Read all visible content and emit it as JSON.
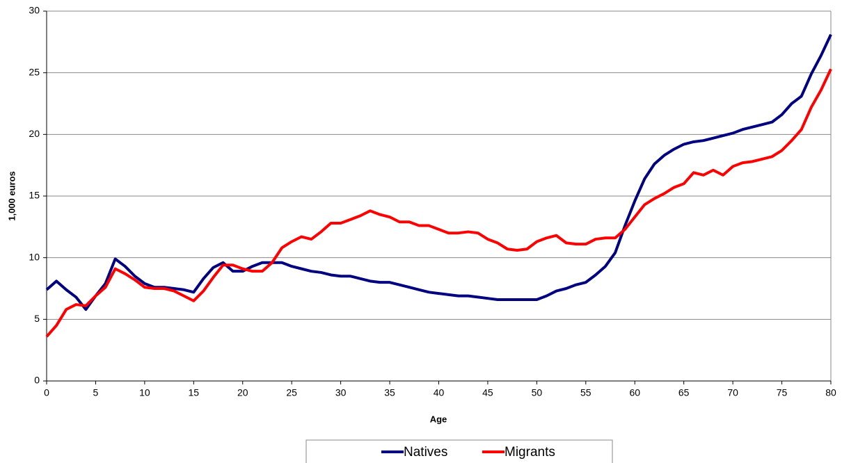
{
  "chart_data": {
    "type": "line",
    "x": [
      0,
      1,
      2,
      3,
      4,
      5,
      6,
      7,
      8,
      9,
      10,
      11,
      12,
      13,
      14,
      15,
      16,
      17,
      18,
      19,
      20,
      21,
      22,
      23,
      24,
      25,
      26,
      27,
      28,
      29,
      30,
      31,
      32,
      33,
      34,
      35,
      36,
      37,
      38,
      39,
      40,
      41,
      42,
      43,
      44,
      45,
      46,
      47,
      48,
      49,
      50,
      51,
      52,
      53,
      54,
      55,
      56,
      57,
      58,
      59,
      60,
      61,
      62,
      63,
      64,
      65,
      66,
      67,
      68,
      69,
      70,
      71,
      72,
      73,
      74,
      75,
      76,
      77,
      78,
      79,
      80
    ],
    "series": [
      {
        "name": "Natives",
        "color": "#000080",
        "values": [
          7.4,
          8.1,
          7.4,
          6.8,
          5.8,
          6.9,
          7.9,
          9.9,
          9.3,
          8.5,
          7.9,
          7.6,
          7.6,
          7.5,
          7.4,
          7.2,
          8.3,
          9.2,
          9.6,
          8.9,
          8.9,
          9.3,
          9.6,
          9.6,
          9.6,
          9.3,
          9.1,
          8.9,
          8.8,
          8.6,
          8.5,
          8.5,
          8.3,
          8.1,
          8.0,
          8.0,
          7.8,
          7.6,
          7.4,
          7.2,
          7.1,
          7.0,
          6.9,
          6.9,
          6.8,
          6.7,
          6.6,
          6.6,
          6.6,
          6.6,
          6.6,
          6.9,
          7.3,
          7.5,
          7.8,
          8.0,
          8.6,
          9.3,
          10.4,
          12.6,
          14.6,
          16.4,
          17.6,
          18.3,
          18.8,
          19.2,
          19.4,
          19.5,
          19.7,
          19.9,
          20.1,
          20.4,
          20.6,
          20.8,
          21.0,
          21.6,
          22.5,
          23.1,
          24.9,
          26.4,
          28.1
        ]
      },
      {
        "name": "Migrants",
        "color": "#ff0000",
        "values": [
          3.6,
          4.5,
          5.8,
          6.2,
          6.1,
          6.9,
          7.6,
          9.1,
          8.7,
          8.2,
          7.6,
          7.5,
          7.5,
          7.3,
          6.9,
          6.5,
          7.3,
          8.4,
          9.4,
          9.4,
          9.1,
          8.9,
          8.9,
          9.6,
          10.8,
          11.3,
          11.7,
          11.5,
          12.1,
          12.8,
          12.8,
          13.1,
          13.4,
          13.8,
          13.5,
          13.3,
          12.9,
          12.9,
          12.6,
          12.6,
          12.3,
          12.0,
          12.0,
          12.1,
          12.0,
          11.5,
          11.2,
          10.7,
          10.6,
          10.7,
          11.3,
          11.6,
          11.8,
          11.2,
          11.1,
          11.1,
          11.5,
          11.6,
          11.6,
          12.3,
          13.3,
          14.3,
          14.8,
          15.2,
          15.7,
          16.0,
          16.9,
          16.7,
          17.1,
          16.7,
          17.4,
          17.7,
          17.8,
          18.0,
          18.2,
          18.7,
          19.5,
          20.4,
          22.2,
          23.6,
          25.3
        ]
      }
    ],
    "x_label": "Age",
    "y_label": "1,000 euros",
    "xlim": [
      0,
      80
    ],
    "xticks": [
      0,
      5,
      10,
      15,
      20,
      25,
      30,
      35,
      40,
      45,
      50,
      55,
      60,
      65,
      70,
      75,
      80
    ],
    "ylim": [
      0,
      30
    ],
    "yticks": [
      0,
      5,
      10,
      15,
      20,
      25,
      30
    ],
    "grid": true,
    "legend": "bottom"
  }
}
